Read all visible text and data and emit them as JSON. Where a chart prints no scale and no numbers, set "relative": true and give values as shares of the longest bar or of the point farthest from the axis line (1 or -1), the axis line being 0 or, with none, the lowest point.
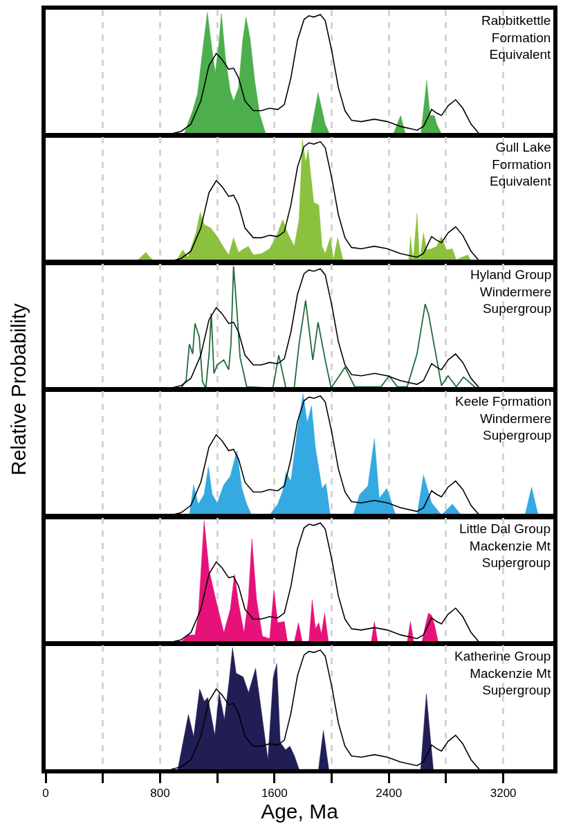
{
  "chart_data": [
    {
      "type": "area",
      "title": "Rabbitkettle\nFormation\nEquivalent",
      "relative": true,
      "xlim": [
        0,
        3550
      ],
      "xticks": [
        0,
        {
          "value": 400,
          "label": null
        },
        800,
        {
          "value": 1200,
          "label": null
        },
        1600,
        {
          "value": 2000,
          "label": null
        },
        2400,
        {
          "value": 2800,
          "label": null
        },
        3200
      ],
      "grid": "x",
      "tick_labels": false,
      "series": [
        {
          "color": "#4cae4c",
          "x": [
            969,
            1028,
            1062,
            1097,
            1131,
            1158,
            1186,
            1211,
            1229,
            1257,
            1291,
            1314,
            1349,
            1378,
            1401,
            1429,
            1463,
            1497,
            1539,
            1852,
            1905,
            1955,
            1985,
            2432,
            2482,
            2516,
            2624,
            2665,
            2688,
            2718,
            2734,
            2768
          ],
          "values": [
            0,
            0.19,
            0.33,
            0.68,
            1.0,
            0.74,
            0.5,
            0.74,
            0.99,
            0.63,
            0.35,
            0.27,
            0.38,
            0.77,
            0.96,
            0.79,
            0.43,
            0.16,
            0,
            0,
            0.34,
            0.08,
            0,
            0,
            0.15,
            0,
            0,
            0.44,
            0.15,
            0.15,
            0.08,
            0
          ]
        },
        {
          "type": "line",
          "color": "#000000",
          "x": [
            879,
            948,
            1016,
            1085,
            1142,
            1193,
            1234,
            1280,
            1314,
            1349,
            1394,
            1452,
            1509,
            1566,
            1623,
            1669,
            1715,
            1761,
            1807,
            1841,
            1875,
            1921,
            1955,
            2001,
            2047,
            2093,
            2139,
            2207,
            2299,
            2390,
            2482,
            2597,
            2642,
            2699,
            2734,
            2768,
            2814,
            2867,
            2917,
            2974,
            3032
          ],
          "values": [
            0,
            0.02,
            0.08,
            0.27,
            0.56,
            0.66,
            0.61,
            0.53,
            0.54,
            0.46,
            0.27,
            0.19,
            0.19,
            0.21,
            0.2,
            0.24,
            0.46,
            0.77,
            0.94,
            0.97,
            0.96,
            0.98,
            0.93,
            0.68,
            0.38,
            0.19,
            0.11,
            0.1,
            0.12,
            0.1,
            0.06,
            0.03,
            0.06,
            0.2,
            0.17,
            0.15,
            0.23,
            0.28,
            0.21,
            0.08,
            0
          ]
        }
      ]
    },
    {
      "type": "area",
      "title": "Gull Lake\nFormation\nEquivalent",
      "relative": true,
      "xlim": [
        0,
        3550
      ],
      "xticks": [
        0,
        {
          "value": 400,
          "label": null
        },
        800,
        {
          "value": 1200,
          "label": null
        },
        1600,
        {
          "value": 2000,
          "label": null
        },
        2400,
        {
          "value": 2800,
          "label": null
        },
        3200
      ],
      "grid": "x",
      "tick_labels": false,
      "series": [
        {
          "color": "#8cc13f",
          "x": [
            638,
            700,
            753,
            913,
            959,
            994,
            1051,
            1081,
            1108,
            1154,
            1200,
            1241,
            1280,
            1314,
            1349,
            1372,
            1417,
            1452,
            1509,
            1566,
            1612,
            1658,
            1692,
            1738,
            1772,
            1795,
            1818,
            1836,
            1852,
            1875,
            1910,
            1933,
            1955,
            1990,
            2013,
            2042,
            2081,
            2539,
            2551,
            2569,
            2597,
            2615,
            2642,
            2665,
            2699,
            2734,
            2768,
            2803,
            2844,
            2871,
            2952,
            2974
          ],
          "values": [
            0,
            0.07,
            0,
            0,
            0.09,
            0.03,
            0.23,
            0.4,
            0.3,
            0.27,
            0.2,
            0.12,
            0.05,
            0.19,
            0.07,
            0.09,
            0.12,
            0.05,
            0.06,
            0.1,
            0.2,
            0.34,
            0.23,
            0.12,
            0.34,
            1.0,
            0.81,
            0.92,
            0.73,
            0.48,
            0.46,
            0.12,
            0.06,
            0.19,
            0.01,
            0.19,
            0,
            0,
            0.2,
            0,
            0.39,
            0,
            0.23,
            0.09,
            0.1,
            0.12,
            0.2,
            0.09,
            0.1,
            0.01,
            0.05,
            0
          ]
        },
        {
          "type": "line",
          "color": "#000000",
          "x": [
            879,
            948,
            1016,
            1085,
            1142,
            1193,
            1234,
            1280,
            1314,
            1349,
            1394,
            1452,
            1509,
            1566,
            1623,
            1669,
            1715,
            1761,
            1807,
            1841,
            1875,
            1921,
            1955,
            2001,
            2047,
            2093,
            2139,
            2207,
            2299,
            2390,
            2482,
            2597,
            2642,
            2699,
            2734,
            2768,
            2814,
            2867,
            2917,
            2974,
            3032
          ],
          "values": [
            0,
            0.02,
            0.08,
            0.27,
            0.56,
            0.66,
            0.61,
            0.53,
            0.54,
            0.46,
            0.27,
            0.19,
            0.19,
            0.21,
            0.2,
            0.24,
            0.46,
            0.77,
            0.94,
            0.97,
            0.96,
            0.98,
            0.93,
            0.68,
            0.38,
            0.19,
            0.11,
            0.1,
            0.12,
            0.1,
            0.06,
            0.03,
            0.06,
            0.2,
            0.17,
            0.15,
            0.23,
            0.28,
            0.21,
            0.08,
            0
          ]
        }
      ]
    },
    {
      "type": "line",
      "title": "Hyland Group\nWindermere\nSupergroup",
      "relative": true,
      "xlim": [
        0,
        3550
      ],
      "xticks": [
        0,
        {
          "value": 400,
          "label": null
        },
        800,
        {
          "value": 1200,
          "label": null
        },
        1600,
        {
          "value": 2000,
          "label": null
        },
        2400,
        {
          "value": 2800,
          "label": null
        },
        3200
      ],
      "grid": "x",
      "tick_labels": false,
      "series": [
        {
          "color": "#1e6b3c",
          "x": [
            948,
            982,
            1005,
            1028,
            1044,
            1074,
            1097,
            1120,
            1143,
            1158,
            1177,
            1200,
            1246,
            1280,
            1296,
            1314,
            1337,
            1360,
            1406,
            1589,
            1630,
            1680,
            1738,
            1772,
            1818,
            1868,
            1905,
            1955,
            1996,
            2093,
            2162,
            2345,
            2402,
            2459,
            2528,
            2597,
            2654,
            2677,
            2768,
            2814,
            2871,
            2922,
            3009
          ],
          "values": [
            0,
            0.06,
            0.36,
            0.28,
            0.53,
            0.42,
            0.05,
            0,
            0.28,
            0.61,
            0.12,
            0.19,
            0.23,
            0.15,
            0.36,
            1.0,
            0.64,
            0.25,
            0.01,
            0,
            0.27,
            0,
            0,
            0.36,
            0.72,
            0.23,
            0.54,
            0.23,
            0,
            0.17,
            0.01,
            0.01,
            0.1,
            0.01,
            0.01,
            0.28,
            0.69,
            0.61,
            0.02,
            0.1,
            0.01,
            0.09,
            0
          ]
        },
        {
          "type": "line",
          "color": "#000000",
          "x": [
            879,
            948,
            1016,
            1085,
            1142,
            1193,
            1234,
            1280,
            1314,
            1349,
            1394,
            1452,
            1509,
            1566,
            1623,
            1669,
            1715,
            1761,
            1807,
            1841,
            1875,
            1921,
            1955,
            2001,
            2047,
            2093,
            2139,
            2207,
            2299,
            2390,
            2482,
            2597,
            2642,
            2699,
            2734,
            2768,
            2814,
            2867,
            2917,
            2974,
            3032
          ],
          "values": [
            0,
            0.02,
            0.08,
            0.27,
            0.56,
            0.66,
            0.61,
            0.53,
            0.54,
            0.46,
            0.27,
            0.19,
            0.19,
            0.21,
            0.2,
            0.24,
            0.46,
            0.77,
            0.94,
            0.97,
            0.96,
            0.98,
            0.93,
            0.68,
            0.38,
            0.19,
            0.11,
            0.1,
            0.12,
            0.1,
            0.06,
            0.03,
            0.06,
            0.2,
            0.17,
            0.15,
            0.23,
            0.28,
            0.21,
            0.08,
            0
          ]
        }
      ]
    },
    {
      "type": "area",
      "title": "Keele Formation\nWindermere\nSupergroup",
      "ylabel": "Relative Probability",
      "relative": true,
      "xlim": [
        0,
        3550
      ],
      "xticks": [
        0,
        {
          "value": 400,
          "label": null
        },
        800,
        {
          "value": 1200,
          "label": null
        },
        1600,
        {
          "value": 2000,
          "label": null
        },
        2400,
        {
          "value": 2800,
          "label": null
        },
        3200
      ],
      "grid": "x",
      "tick_labels": false,
      "series": [
        {
          "color": "#35a9e1",
          "x": [
            1005,
            1035,
            1067,
            1108,
            1138,
            1165,
            1200,
            1246,
            1291,
            1337,
            1372,
            1406,
            1440,
            1566,
            1623,
            1658,
            1681,
            1715,
            1761,
            1800,
            1829,
            1859,
            1887,
            1933,
            1960,
            1990,
            2150,
            2196,
            2253,
            2299,
            2333,
            2386,
            2448,
            2597,
            2642,
            2699,
            2768,
            2844,
            2906,
            3352,
            3398,
            3444
          ],
          "values": [
            0,
            0.25,
            0.09,
            0.17,
            0.4,
            0.17,
            0.1,
            0.25,
            0.32,
            0.53,
            0.22,
            0.09,
            0,
            0,
            0.09,
            0.2,
            0.35,
            0.28,
            0.71,
            1.0,
            0.76,
            0.9,
            0.55,
            0.22,
            0.26,
            0,
            0,
            0.17,
            0.24,
            0.63,
            0.14,
            0.22,
            0,
            0,
            0.33,
            0.1,
            0,
            0.09,
            0,
            0,
            0.23,
            0
          ]
        },
        {
          "type": "line",
          "color": "#000000",
          "x": [
            879,
            948,
            1016,
            1085,
            1142,
            1193,
            1234,
            1280,
            1314,
            1349,
            1394,
            1452,
            1509,
            1566,
            1623,
            1669,
            1715,
            1761,
            1807,
            1841,
            1875,
            1921,
            1955,
            2001,
            2047,
            2093,
            2139,
            2207,
            2299,
            2390,
            2482,
            2597,
            2642,
            2699,
            2734,
            2768,
            2814,
            2867,
            2917,
            2974,
            3032
          ],
          "values": [
            0,
            0.02,
            0.08,
            0.27,
            0.56,
            0.66,
            0.61,
            0.53,
            0.54,
            0.46,
            0.27,
            0.19,
            0.19,
            0.21,
            0.2,
            0.24,
            0.46,
            0.77,
            0.94,
            0.97,
            0.96,
            0.98,
            0.93,
            0.68,
            0.38,
            0.19,
            0.11,
            0.1,
            0.12,
            0.1,
            0.06,
            0.03,
            0.06,
            0.2,
            0.17,
            0.15,
            0.23,
            0.28,
            0.21,
            0.08,
            0
          ]
        }
      ]
    },
    {
      "type": "area",
      "title": "Little Dal Group\nMackenzie Mt\nSupergroup",
      "relative": true,
      "xlim": [
        0,
        3550
      ],
      "xticks": [
        0,
        {
          "value": 400,
          "label": null
        },
        800,
        {
          "value": 1200,
          "label": null
        },
        1600,
        {
          "value": 2000,
          "label": null
        },
        2400,
        {
          "value": 2800,
          "label": null
        },
        3200
      ],
      "grid": "x",
      "tick_labels": false,
      "series": [
        {
          "color": "#e6127a",
          "x": [
            948,
            994,
            1044,
            1067,
            1108,
            1143,
            1200,
            1246,
            1291,
            1321,
            1349,
            1387,
            1417,
            1442,
            1475,
            1516,
            1566,
            1596,
            1623,
            1669,
            1692,
            1738,
            1768,
            1795,
            1841,
            1864,
            1887,
            1910,
            1928,
            1951,
            1978,
            2276,
            2299,
            2322,
            2528,
            2551,
            2574,
            2631,
            2654,
            2677,
            2699,
            2722,
            2745
          ],
          "values": [
            0,
            0.06,
            0.06,
            0.22,
            1.0,
            0.59,
            0.3,
            0.08,
            0.27,
            0.56,
            0.32,
            0.08,
            0.35,
            0.85,
            0.35,
            0.05,
            0.03,
            0.43,
            0.16,
            0.17,
            0,
            0,
            0.16,
            0,
            0.01,
            0.35,
            0.11,
            0.16,
            0.07,
            0.24,
            0,
            0,
            0.17,
            0,
            0,
            0.17,
            0,
            0,
            0.13,
            0.24,
            0.22,
            0.13,
            0
          ]
        },
        {
          "type": "line",
          "color": "#000000",
          "x": [
            879,
            948,
            1016,
            1085,
            1142,
            1193,
            1234,
            1280,
            1314,
            1349,
            1394,
            1452,
            1509,
            1566,
            1623,
            1669,
            1715,
            1761,
            1807,
            1841,
            1875,
            1921,
            1955,
            2001,
            2047,
            2093,
            2139,
            2207,
            2299,
            2390,
            2482,
            2597,
            2642,
            2699,
            2734,
            2768,
            2814,
            2867,
            2917,
            2974,
            3032
          ],
          "values": [
            0,
            0.02,
            0.08,
            0.27,
            0.56,
            0.66,
            0.61,
            0.53,
            0.54,
            0.46,
            0.27,
            0.19,
            0.19,
            0.21,
            0.2,
            0.24,
            0.46,
            0.77,
            0.94,
            0.97,
            0.96,
            0.98,
            0.93,
            0.68,
            0.38,
            0.19,
            0.11,
            0.1,
            0.12,
            0.1,
            0.06,
            0.03,
            0.06,
            0.2,
            0.17,
            0.15,
            0.23,
            0.28,
            0.21,
            0.08,
            0
          ]
        }
      ]
    },
    {
      "type": "area",
      "title": "Katherine Group\nMackenzie Mt\nSupergroup",
      "xlabel": "Age, Ma",
      "relative": true,
      "xlim": [
        0,
        3550
      ],
      "xticks": [
        0,
        {
          "value": 400,
          "label": null
        },
        800,
        {
          "value": 1200,
          "label": null
        },
        1600,
        {
          "value": 2000,
          "label": null
        },
        2400,
        {
          "value": 2800,
          "label": null
        },
        3200
      ],
      "grid": "x",
      "tick_labels": "x",
      "series": [
        {
          "color": "#211e55",
          "x": [
            924,
            998,
            1035,
            1077,
            1109,
            1134,
            1183,
            1213,
            1250,
            1282,
            1307,
            1332,
            1381,
            1419,
            1468,
            1505,
            1554,
            1591,
            1616,
            1641,
            1678,
            1708,
            1740,
            1772,
            1908,
            1942,
            1980,
            2622,
            2662,
            2711
          ],
          "values": [
            0,
            0.45,
            0.27,
            0.66,
            0.56,
            0.59,
            0.28,
            0.63,
            0.41,
            0.72,
            1.0,
            0.79,
            0.76,
            0.63,
            0.83,
            0.51,
            0.08,
            0.75,
            0.87,
            0.22,
            0.16,
            0.19,
            0.11,
            0,
            0,
            0.32,
            0,
            0,
            0.62,
            0
          ]
        },
        {
          "type": "line",
          "color": "#000000",
          "x": [
            879,
            948,
            1016,
            1085,
            1142,
            1193,
            1234,
            1280,
            1314,
            1349,
            1394,
            1452,
            1509,
            1566,
            1623,
            1669,
            1715,
            1761,
            1807,
            1841,
            1875,
            1921,
            1955,
            2001,
            2047,
            2093,
            2139,
            2207,
            2299,
            2390,
            2482,
            2597,
            2642,
            2699,
            2734,
            2768,
            2814,
            2867,
            2917,
            2974,
            3032
          ],
          "values": [
            0,
            0.02,
            0.08,
            0.27,
            0.56,
            0.66,
            0.61,
            0.53,
            0.54,
            0.46,
            0.27,
            0.19,
            0.19,
            0.21,
            0.2,
            0.24,
            0.46,
            0.77,
            0.94,
            0.97,
            0.96,
            0.98,
            0.93,
            0.68,
            0.38,
            0.19,
            0.11,
            0.1,
            0.12,
            0.1,
            0.06,
            0.03,
            0.06,
            0.2,
            0.17,
            0.15,
            0.23,
            0.28,
            0.21,
            0.08,
            0
          ]
        }
      ]
    }
  ]
}
